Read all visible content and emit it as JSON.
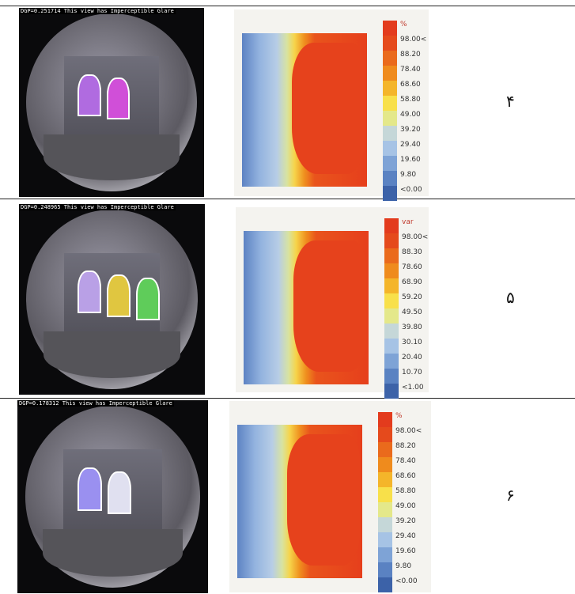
{
  "rows": [
    {
      "caption": "DGP=0.251714 This view has Imperceptible Glare",
      "legend_title": "%",
      "legend_labels": [
        "98.00<",
        "88.20",
        "78.40",
        "68.60",
        "58.80",
        "49.00",
        "39.20",
        "29.40",
        "19.60",
        "9.80",
        "<0.00"
      ],
      "label": "۴"
    },
    {
      "caption": "DGP=0.248965 This view has Imperceptible Glare",
      "legend_title": "var",
      "legend_labels": [
        "98.00<",
        "88.30",
        "78.60",
        "68.90",
        "59.20",
        "49.50",
        "39.80",
        "30.10",
        "20.40",
        "10.70",
        "<1.00"
      ],
      "label": "۵"
    },
    {
      "caption": "DGP=0.178312 This view has Imperceptible Glare",
      "legend_title": "%",
      "legend_labels": [
        "98.00<",
        "88.20",
        "78.40",
        "68.60",
        "58.80",
        "49.00",
        "39.20",
        "29.40",
        "19.60",
        "9.80",
        "<0.00"
      ],
      "label": "۶"
    }
  ]
}
